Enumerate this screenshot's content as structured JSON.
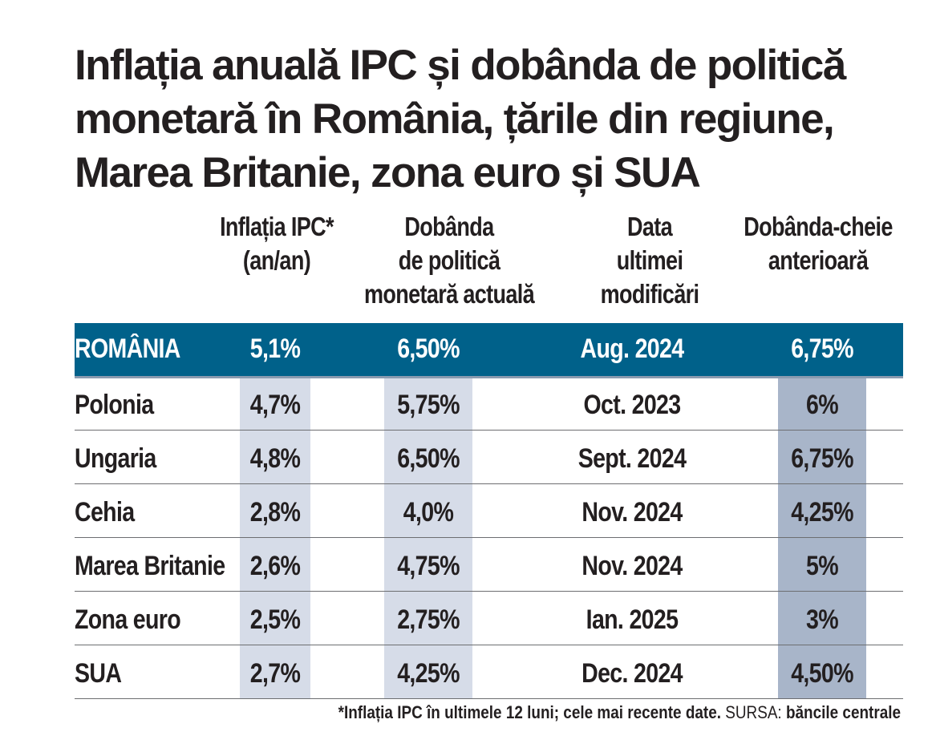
{
  "chart_data": {
    "type": "table",
    "title_lines": [
      "Inflația anuală IPC și dobânda de politică",
      "monetară în România, țările din regiune,",
      "Marea Britanie, zona euro și SUA"
    ],
    "columns": [
      {
        "lines": [
          "Inflația IPC*",
          "(an/an)"
        ]
      },
      {
        "lines": [
          "Dobânda",
          "de politică",
          "monetară actuală"
        ]
      },
      {
        "lines": [
          "Data",
          "ultimei",
          "modificări"
        ]
      },
      {
        "lines": [
          "Dobânda-cheie",
          "anterioară"
        ]
      }
    ],
    "rows": [
      {
        "country": "ROMÂNIA",
        "inflation": "5,1%",
        "rate": "6,50%",
        "date": "Aug. 2024",
        "prev_rate": "6,75%"
      },
      {
        "country": "Polonia",
        "inflation": "4,7%",
        "rate": "5,75%",
        "date": "Oct. 2023",
        "prev_rate": "6%"
      },
      {
        "country": "Ungaria",
        "inflation": "4,8%",
        "rate": "6,50%",
        "date": "Sept. 2024",
        "prev_rate": "6,75%"
      },
      {
        "country": "Cehia",
        "inflation": "2,8%",
        "rate": "4,0%",
        "date": "Nov. 2024",
        "prev_rate": "4,25%"
      },
      {
        "country": "Marea Britanie",
        "inflation": "2,6%",
        "rate": "4,75%",
        "date": "Nov. 2024",
        "prev_rate": "5%"
      },
      {
        "country": "Zona euro",
        "inflation": "2,5%",
        "rate": "2,75%",
        "date": "Ian. 2025",
        "prev_rate": "3%"
      },
      {
        "country": "SUA",
        "inflation": "2,7%",
        "rate": "4,25%",
        "date": "Dec. 2024",
        "prev_rate": "4,50%"
      }
    ],
    "footnote": "*Inflația IPC în ultimele 12 luni; cele mai recente date.",
    "source_label": "SURSA:",
    "source": "băncile centrale"
  },
  "colors": {
    "highlight_row": "#00618a",
    "band_light": "#d6dce8",
    "band_dark": "#a8b5c9",
    "text": "#231f20"
  }
}
